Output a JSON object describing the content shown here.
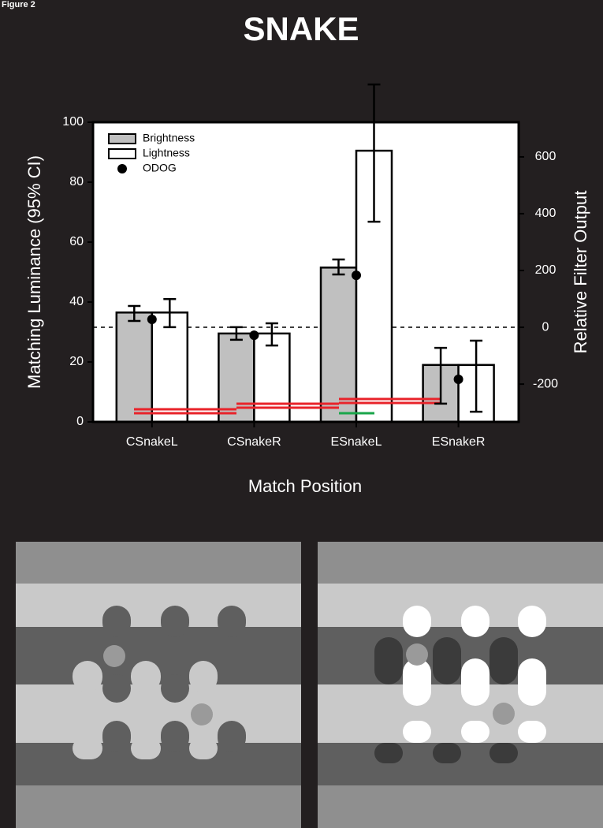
{
  "chart_data": {
    "type": "bar",
    "figure_label": "Figure 2",
    "title": "SNAKE",
    "y_label": "Matching Luminance (95% CI)",
    "y2_label": "Relative Filter Output",
    "x_label": "Match Position",
    "categories": [
      "CSnakeL",
      "CSnakeR",
      "ESnakeL",
      "ESnakeR"
    ],
    "series": [
      {
        "name": "Brightness",
        "color": "#c0c0c0",
        "values": [
          36.5,
          29.5,
          51.5,
          19
        ],
        "ci": [
          [
            33.7,
            38.7
          ],
          [
            27.4,
            31.6
          ],
          [
            49.2,
            54.2
          ],
          [
            6.1,
            24.7
          ]
        ]
      },
      {
        "name": "Lightness",
        "color": "#ffffff",
        "values": [
          36.5,
          29.5,
          90.5,
          19
        ],
        "ci": [
          [
            31.6,
            41
          ],
          [
            25.5,
            32.9
          ],
          [
            66.8,
            112.6
          ],
          [
            3.4,
            27.1
          ]
        ]
      },
      {
        "name": "ODOG",
        "color": "#000000",
        "type": "scatter",
        "axis": "y2",
        "values": [
          28,
          -28,
          183,
          -183
        ]
      }
    ],
    "ylim": [
      0,
      100
    ],
    "yticks": [
      0,
      20,
      40,
      60,
      80,
      100
    ],
    "y2lim": [
      -333,
      722
    ],
    "y2ticks": [
      -200,
      0,
      200,
      400,
      600
    ],
    "reference_line": {
      "axis": "y2",
      "value": 0
    },
    "legend": "upper left"
  }
}
